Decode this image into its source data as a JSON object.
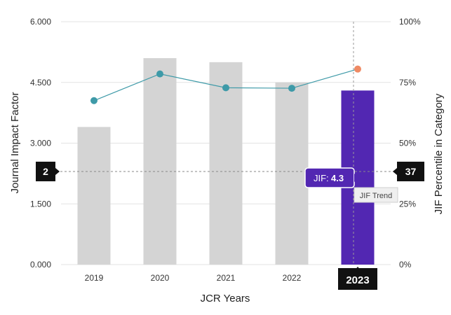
{
  "chart_data": {
    "type": "bar",
    "categories": [
      "2019",
      "2020",
      "2021",
      "2022",
      "2023"
    ],
    "xlabel": "JCR Years",
    "ylabel": "Journal Impact Factor",
    "y2label": "JIF Percentile in Category",
    "ylim": [
      0,
      6
    ],
    "y_ticks": [
      "0.000",
      "1.500",
      "3.000",
      "4.500",
      "6.000"
    ],
    "y2lim": [
      0,
      100
    ],
    "y2_ticks": [
      "0%",
      "25%",
      "50%",
      "75%",
      "100%"
    ],
    "grid": true,
    "series": [
      {
        "kind": "bar",
        "values": [
          3.4,
          5.1,
          5.0,
          4.5,
          4.3
        ]
      },
      {
        "kind": "line",
        "axis": "right",
        "values": [
          67.5,
          78.5,
          72.8,
          72.6,
          80.5
        ]
      }
    ],
    "bar_color": "#d4d4d4",
    "highlight_bar_color": "#5227b2",
    "line_color": "#3e9aa8",
    "highlight_point_color": "#ef8a64",
    "highlight_index": 4,
    "reference_line": {
      "left_label": "2",
      "right_label": "37",
      "value": 2.3
    },
    "tooltip": {
      "label": "JIF:",
      "value": "4.3"
    },
    "line_tooltip": "JIF Trend",
    "selected_year_label": "2023"
  }
}
